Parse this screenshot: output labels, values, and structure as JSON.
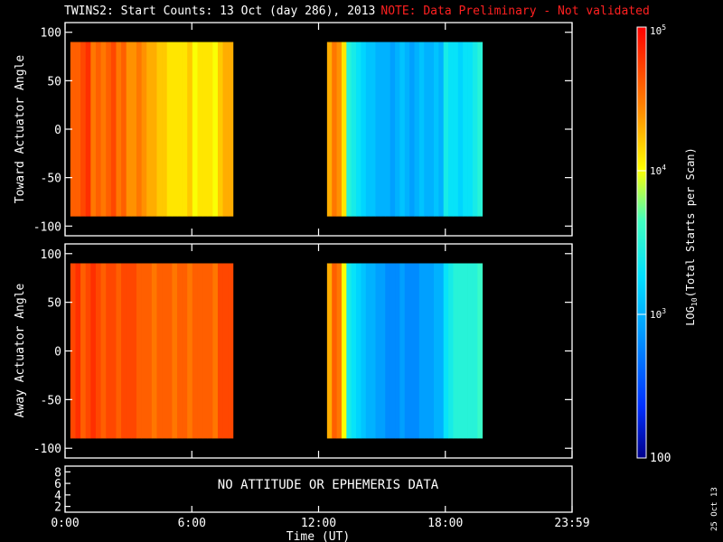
{
  "title": {
    "main": "TWINS2: Start Counts: 13 Oct (day 286), 2013",
    "note": "NOTE: Data Preliminary - Not validated"
  },
  "stamp": "25 Oct 13",
  "colors": {
    "background": "#000000",
    "foreground": "#ffffff",
    "note": "#ff2020"
  },
  "chart_data": [
    {
      "type": "heatmap",
      "panel": "toward",
      "ylabel": "Toward Actuator Angle",
      "ylim": [
        -110,
        110
      ],
      "yticks": [
        100,
        50,
        0,
        -50,
        -100
      ],
      "xlim_hours": [
        0,
        24
      ],
      "data_x_ranges_hours": [
        [
          0.25,
          7.95
        ],
        [
          12.4,
          19.75
        ]
      ],
      "data_y_range": [
        -90,
        90
      ],
      "log_counts_mean": [
        [
          4.6,
          4.6,
          4.7,
          4.8,
          4.5,
          4.6,
          4.5,
          4.6,
          4.7,
          4.5,
          4.6,
          4.4,
          4.4,
          4.5,
          4.4,
          4.3,
          4.3,
          4.2,
          4.2,
          4.1,
          4.1,
          4.1,
          4.1,
          4.2,
          4.0,
          4.1,
          4.1,
          4.1,
          4.0,
          4.2,
          4.3,
          4.3
        ],
        [
          4.3,
          4.5,
          4.4,
          4.1,
          3.5,
          3.4,
          3.3,
          3.2,
          3.1,
          3.1,
          3.0,
          3.0,
          3.0,
          2.9,
          3.0,
          3.1,
          3.0,
          2.9,
          3.0,
          3.1,
          3.0,
          3.0,
          3.1,
          3.0,
          3.4,
          3.3,
          3.3,
          3.2,
          3.3,
          3.3,
          3.4,
          3.5
        ]
      ],
      "notes": "Left block orange-yellow (10^4 to 10^5); right block predominantly blue/cyan (10^3)"
    },
    {
      "type": "heatmap",
      "panel": "away",
      "ylabel": "Away Actuator Angle",
      "ylim": [
        -110,
        110
      ],
      "yticks": [
        100,
        50,
        0,
        -50,
        -100
      ],
      "xlim_hours": [
        0,
        24
      ],
      "data_x_ranges_hours": [
        [
          0.25,
          7.95
        ],
        [
          12.4,
          19.75
        ]
      ],
      "data_y_range": [
        -90,
        90
      ],
      "log_counts_mean": [
        [
          4.7,
          4.8,
          4.6,
          4.7,
          4.8,
          4.7,
          4.6,
          4.7,
          4.7,
          4.6,
          4.7,
          4.7,
          4.7,
          4.6,
          4.6,
          4.6,
          4.5,
          4.6,
          4.6,
          4.6,
          4.5,
          4.6,
          4.6,
          4.5,
          4.6,
          4.6,
          4.6,
          4.6,
          4.5,
          4.7,
          4.7,
          4.7
        ],
        [
          4.3,
          4.6,
          4.5,
          4.0,
          3.4,
          3.3,
          3.2,
          3.1,
          3.0,
          3.0,
          2.9,
          2.9,
          2.8,
          2.8,
          2.8,
          2.9,
          2.8,
          2.8,
          2.8,
          2.9,
          2.9,
          2.9,
          3.0,
          3.0,
          3.3,
          3.4,
          3.5,
          3.5,
          3.5,
          3.5,
          3.5,
          3.6
        ]
      ]
    },
    {
      "type": "line",
      "panel": "ephemeris",
      "message": "NO ATTITUDE OR EPHEMERIS DATA",
      "yticks": [
        8,
        6,
        4,
        2
      ],
      "ylim": [
        1,
        9
      ]
    }
  ],
  "xaxis": {
    "label": "Time (UT)",
    "tick_labels": [
      "0:00",
      "6:00",
      "12:00",
      "18:00",
      "23:59"
    ],
    "tick_hours": [
      0,
      6,
      12,
      18,
      24
    ]
  },
  "colorbar": {
    "label_prefix": "LOG",
    "label_sub": "10",
    "label_suffix": "(Total Starts per Scan)",
    "range_log": [
      2,
      5
    ],
    "ticks": [
      {
        "log": 5,
        "base": "10",
        "exp": "5"
      },
      {
        "log": 4,
        "base": "10",
        "exp": "4"
      },
      {
        "log": 3,
        "base": "10",
        "exp": "3"
      },
      {
        "log": 2,
        "plain": "100"
      }
    ]
  }
}
